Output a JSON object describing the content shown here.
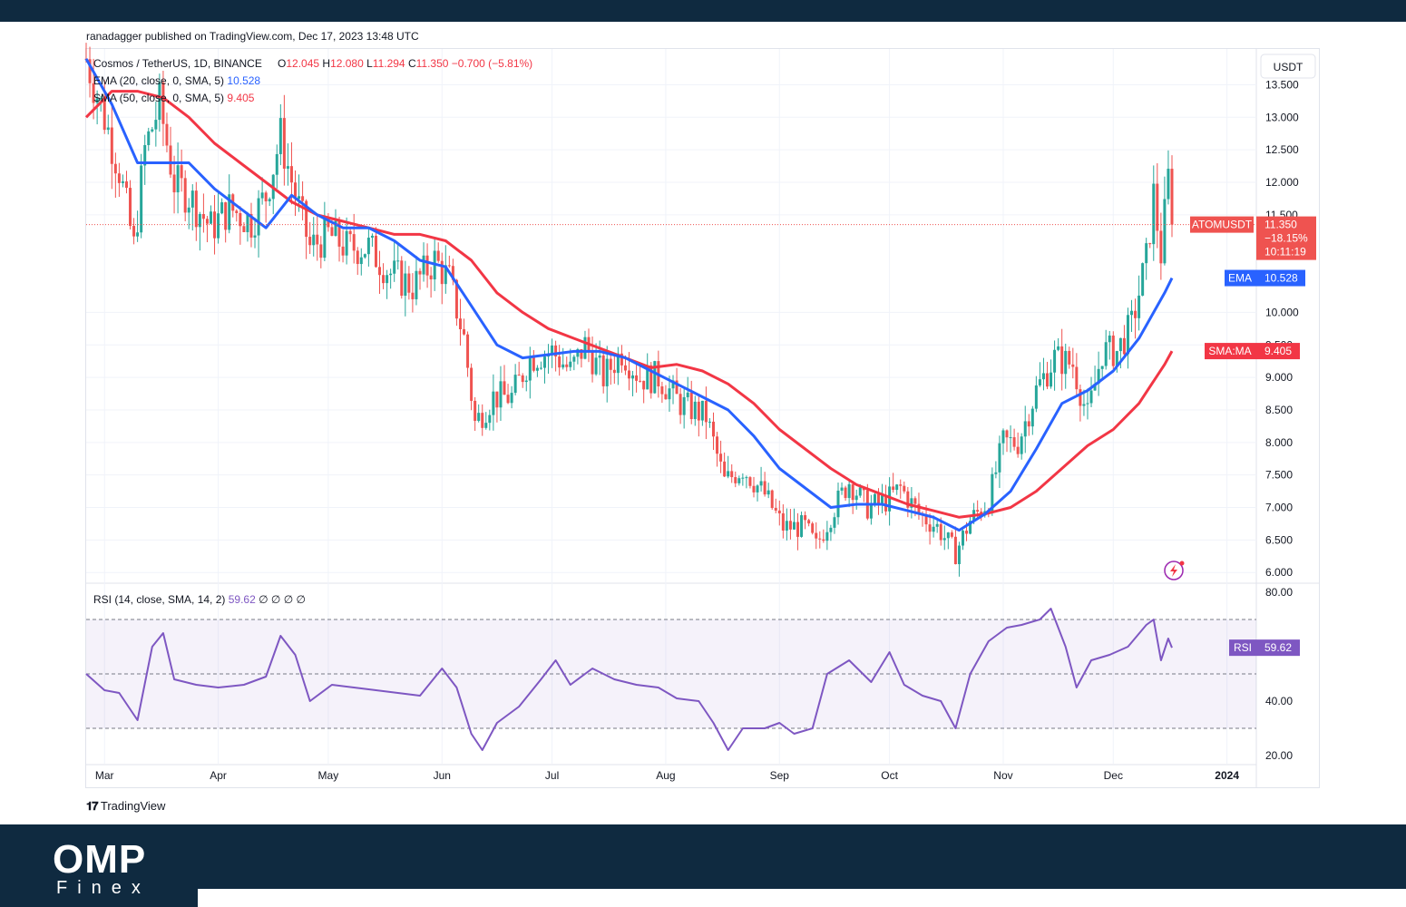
{
  "header": {
    "publisher": "ranadagger published on TradingView.com, Dec 17, 2023 13:48 UTC"
  },
  "footer": {
    "tradingview": "TradingView"
  },
  "brand": {
    "name": "OMP",
    "sub": "Finex"
  },
  "colors": {
    "ema": "#2962ff",
    "sma": "#f23645",
    "up": "#26a69a",
    "down": "#ef5350",
    "rsi": "#7e57c2",
    "banner": "#0f2a40"
  },
  "chart_data": [
    {
      "type": "candlestick",
      "title": "Cosmos / TetherUS, 1D, BINANCE",
      "ohlc_label": {
        "o_label": "O",
        "o": "12.045",
        "h_label": "H",
        "h": "12.080",
        "l_label": "L",
        "l": "11.294",
        "c_label": "C",
        "c": "11.350",
        "change": "−0.700 (−5.81%)"
      },
      "currency": "USDT",
      "ylim": [
        5.85,
        14.05
      ],
      "y_ticks": [
        "13.500",
        "13.000",
        "12.500",
        "12.000",
        "11.500",
        "10.000",
        "9.500",
        "9.000",
        "8.500",
        "8.000",
        "7.500",
        "7.000",
        "6.500",
        "6.000"
      ],
      "x_ticks": [
        "Mar",
        "Apr",
        "May",
        "Jun",
        "Jul",
        "Aug",
        "Sep",
        "Oct",
        "Nov",
        "Dec",
        "2024"
      ],
      "indicators": [
        {
          "label": "EMA (20, close, 0, SMA, 5)",
          "value": "10.528"
        },
        {
          "label": "SMA (50, close, 0, SMA, 5)",
          "value": "9.405"
        }
      ],
      "series": [
        {
          "name": "EMA",
          "value": "10.528",
          "points": [
            [
              "2023-02-24",
              13.9
            ],
            [
              "2023-03-03",
              13.2
            ],
            [
              "2023-03-10",
              12.3
            ],
            [
              "2023-03-17",
              12.3
            ],
            [
              "2023-03-24",
              12.3
            ],
            [
              "2023-03-31",
              11.9
            ],
            [
              "2023-04-07",
              11.6
            ],
            [
              "2023-04-14",
              11.3
            ],
            [
              "2023-04-21",
              11.8
            ],
            [
              "2023-04-28",
              11.5
            ],
            [
              "2023-05-05",
              11.3
            ],
            [
              "2023-05-12",
              11.3
            ],
            [
              "2023-05-19",
              11.1
            ],
            [
              "2023-05-26",
              10.8
            ],
            [
              "2023-06-02",
              10.7
            ],
            [
              "2023-06-09",
              10.1
            ],
            [
              "2023-06-16",
              9.5
            ],
            [
              "2023-06-23",
              9.3
            ],
            [
              "2023-06-30",
              9.35
            ],
            [
              "2023-07-07",
              9.4
            ],
            [
              "2023-07-14",
              9.4
            ],
            [
              "2023-07-21",
              9.3
            ],
            [
              "2023-07-28",
              9.1
            ],
            [
              "2023-08-04",
              8.9
            ],
            [
              "2023-08-11",
              8.7
            ],
            [
              "2023-08-18",
              8.5
            ],
            [
              "2023-08-25",
              8.1
            ],
            [
              "2023-09-01",
              7.6
            ],
            [
              "2023-09-08",
              7.3
            ],
            [
              "2023-09-15",
              7.0
            ],
            [
              "2023-09-22",
              7.05
            ],
            [
              "2023-09-29",
              7.05
            ],
            [
              "2023-10-06",
              6.95
            ],
            [
              "2023-10-13",
              6.85
            ],
            [
              "2023-10-20",
              6.65
            ],
            [
              "2023-10-27",
              6.9
            ],
            [
              "2023-11-03",
              7.25
            ],
            [
              "2023-11-10",
              7.9
            ],
            [
              "2023-11-17",
              8.6
            ],
            [
              "2023-11-24",
              8.8
            ],
            [
              "2023-12-01",
              9.1
            ],
            [
              "2023-12-08",
              9.6
            ],
            [
              "2023-12-15",
              10.3
            ],
            [
              "2023-12-17",
              10.528
            ]
          ]
        },
        {
          "name": "SMA:MA",
          "value": "9.405",
          "points": [
            [
              "2023-02-24",
              13.0
            ],
            [
              "2023-03-03",
              13.4
            ],
            [
              "2023-03-10",
              13.4
            ],
            [
              "2023-03-17",
              13.3
            ],
            [
              "2023-03-24",
              13.0
            ],
            [
              "2023-03-31",
              12.6
            ],
            [
              "2023-04-07",
              12.3
            ],
            [
              "2023-04-14",
              12.0
            ],
            [
              "2023-04-21",
              11.7
            ],
            [
              "2023-04-28",
              11.5
            ],
            [
              "2023-05-05",
              11.4
            ],
            [
              "2023-05-12",
              11.3
            ],
            [
              "2023-05-19",
              11.2
            ],
            [
              "2023-05-26",
              11.2
            ],
            [
              "2023-06-02",
              11.1
            ],
            [
              "2023-06-09",
              10.8
            ],
            [
              "2023-06-16",
              10.3
            ],
            [
              "2023-06-23",
              10.0
            ],
            [
              "2023-06-30",
              9.75
            ],
            [
              "2023-07-07",
              9.6
            ],
            [
              "2023-07-14",
              9.45
            ],
            [
              "2023-07-21",
              9.3
            ],
            [
              "2023-07-28",
              9.15
            ],
            [
              "2023-08-04",
              9.2
            ],
            [
              "2023-08-11",
              9.1
            ],
            [
              "2023-08-18",
              8.9
            ],
            [
              "2023-08-25",
              8.6
            ],
            [
              "2023-09-01",
              8.2
            ],
            [
              "2023-09-08",
              7.9
            ],
            [
              "2023-09-15",
              7.6
            ],
            [
              "2023-09-22",
              7.35
            ],
            [
              "2023-09-29",
              7.2
            ],
            [
              "2023-10-06",
              7.05
            ],
            [
              "2023-10-13",
              6.95
            ],
            [
              "2023-10-20",
              6.85
            ],
            [
              "2023-10-27",
              6.9
            ],
            [
              "2023-11-03",
              7.0
            ],
            [
              "2023-11-10",
              7.25
            ],
            [
              "2023-11-17",
              7.6
            ],
            [
              "2023-11-24",
              7.95
            ],
            [
              "2023-12-01",
              8.2
            ],
            [
              "2023-12-08",
              8.6
            ],
            [
              "2023-12-15",
              9.2
            ],
            [
              "2023-12-17",
              9.405
            ]
          ]
        },
        {
          "name": "Price",
          "points": [
            [
              "2023-02-24",
              13.9
            ],
            [
              "2023-03-01",
              13.0
            ],
            [
              "2023-03-05",
              12.2
            ],
            [
              "2023-03-09",
              11.0
            ],
            [
              "2023-03-12",
              12.5
            ],
            [
              "2023-03-16",
              13.2
            ],
            [
              "2023-03-20",
              12.0
            ],
            [
              "2023-03-24",
              11.8
            ],
            [
              "2023-03-30",
              11.3
            ],
            [
              "2023-04-04",
              11.6
            ],
            [
              "2023-04-10",
              11.4
            ],
            [
              "2023-04-14",
              11.8
            ],
            [
              "2023-04-18",
              12.7
            ],
            [
              "2023-04-22",
              11.8
            ],
            [
              "2023-04-26",
              11.0
            ],
            [
              "2023-05-01",
              11.2
            ],
            [
              "2023-05-06",
              11.0
            ],
            [
              "2023-05-12",
              11.0
            ],
            [
              "2023-05-18",
              10.6
            ],
            [
              "2023-05-24",
              10.4
            ],
            [
              "2023-05-30",
              10.8
            ],
            [
              "2023-06-03",
              10.5
            ],
            [
              "2023-06-07",
              9.6
            ],
            [
              "2023-06-10",
              8.3
            ],
            [
              "2023-06-15",
              8.7
            ],
            [
              "2023-06-20",
              8.7
            ],
            [
              "2023-06-25",
              9.3
            ],
            [
              "2023-07-01",
              9.4
            ],
            [
              "2023-07-06",
              9.1
            ],
            [
              "2023-07-10",
              9.5
            ],
            [
              "2023-07-15",
              9.0
            ],
            [
              "2023-07-20",
              9.4
            ],
            [
              "2023-07-25",
              9.0
            ],
            [
              "2023-07-30",
              9.0
            ],
            [
              "2023-08-05",
              8.6
            ],
            [
              "2023-08-12",
              8.4
            ],
            [
              "2023-08-17",
              7.4
            ],
            [
              "2023-08-22",
              7.6
            ],
            [
              "2023-08-28",
              7.2
            ],
            [
              "2023-09-02",
              6.7
            ],
            [
              "2023-09-08",
              6.7
            ],
            [
              "2023-09-11",
              6.4
            ],
            [
              "2023-09-16",
              7.0
            ],
            [
              "2023-09-20",
              7.4
            ],
            [
              "2023-09-25",
              7.0
            ],
            [
              "2023-09-30",
              7.1
            ],
            [
              "2023-10-04",
              7.3
            ],
            [
              "2023-10-09",
              6.9
            ],
            [
              "2023-10-14",
              6.7
            ],
            [
              "2023-10-19",
              6.3
            ],
            [
              "2023-10-23",
              6.8
            ],
            [
              "2023-10-28",
              7.1
            ],
            [
              "2023-11-01",
              8.0
            ],
            [
              "2023-11-05",
              8.0
            ],
            [
              "2023-11-10",
              8.8
            ],
            [
              "2023-11-15",
              9.3
            ],
            [
              "2023-11-20",
              9.2
            ],
            [
              "2023-11-24",
              8.4
            ],
            [
              "2023-11-28",
              9.4
            ],
            [
              "2023-12-02",
              9.4
            ],
            [
              "2023-12-06",
              9.8
            ],
            [
              "2023-12-10",
              10.8
            ],
            [
              "2023-12-12",
              11.8
            ],
            [
              "2023-12-14",
              10.9
            ],
            [
              "2023-12-16",
              12.045
            ],
            [
              "2023-12-17",
              11.35
            ]
          ]
        }
      ],
      "last_price": {
        "label": "ATOMUSDT",
        "value": "11.350",
        "change": "−18.15%",
        "countdown": "10:11:19"
      }
    },
    {
      "type": "line",
      "title": "RSI (14, close, SMA, 14, 2)",
      "legend_value": "59.62",
      "legend_extras": [
        "∅",
        "∅",
        "∅",
        "∅"
      ],
      "ylim": [
        17,
        83
      ],
      "y_ticks": [
        "80.00",
        "40.00",
        "20.00"
      ],
      "bands": [
        70,
        50,
        30
      ],
      "series": [
        {
          "name": "RSI",
          "value": "59.62",
          "points": [
            [
              "2023-02-24",
              50
            ],
            [
              "2023-03-01",
              44
            ],
            [
              "2023-03-05",
              43
            ],
            [
              "2023-03-10",
              33
            ],
            [
              "2023-03-14",
              60
            ],
            [
              "2023-03-17",
              65
            ],
            [
              "2023-03-20",
              48
            ],
            [
              "2023-03-26",
              46
            ],
            [
              "2023-04-01",
              45
            ],
            [
              "2023-04-08",
              46
            ],
            [
              "2023-04-14",
              49
            ],
            [
              "2023-04-18",
              64
            ],
            [
              "2023-04-22",
              57
            ],
            [
              "2023-04-26",
              40
            ],
            [
              "2023-05-02",
              46
            ],
            [
              "2023-05-08",
              45
            ],
            [
              "2023-05-14",
              44
            ],
            [
              "2023-05-20",
              43
            ],
            [
              "2023-05-26",
              42
            ],
            [
              "2023-06-01",
              52
            ],
            [
              "2023-06-05",
              45
            ],
            [
              "2023-06-09",
              28
            ],
            [
              "2023-06-12",
              22
            ],
            [
              "2023-06-16",
              32
            ],
            [
              "2023-06-22",
              38
            ],
            [
              "2023-06-28",
              48
            ],
            [
              "2023-07-02",
              55
            ],
            [
              "2023-07-06",
              46
            ],
            [
              "2023-07-12",
              52
            ],
            [
              "2023-07-18",
              48
            ],
            [
              "2023-07-24",
              46
            ],
            [
              "2023-07-30",
              45
            ],
            [
              "2023-08-04",
              41
            ],
            [
              "2023-08-10",
              40
            ],
            [
              "2023-08-14",
              32
            ],
            [
              "2023-08-18",
              22
            ],
            [
              "2023-08-22",
              30
            ],
            [
              "2023-08-28",
              30
            ],
            [
              "2023-09-01",
              32
            ],
            [
              "2023-09-05",
              28
            ],
            [
              "2023-09-10",
              30
            ],
            [
              "2023-09-14",
              50
            ],
            [
              "2023-09-20",
              55
            ],
            [
              "2023-09-26",
              47
            ],
            [
              "2023-10-01",
              58
            ],
            [
              "2023-10-05",
              46
            ],
            [
              "2023-10-10",
              42
            ],
            [
              "2023-10-15",
              40
            ],
            [
              "2023-10-19",
              30
            ],
            [
              "2023-10-23",
              50
            ],
            [
              "2023-10-28",
              62
            ],
            [
              "2023-11-02",
              67
            ],
            [
              "2023-11-06",
              68
            ],
            [
              "2023-11-11",
              70
            ],
            [
              "2023-11-14",
              74
            ],
            [
              "2023-11-18",
              60
            ],
            [
              "2023-11-21",
              45
            ],
            [
              "2023-11-25",
              55
            ],
            [
              "2023-11-30",
              57
            ],
            [
              "2023-12-05",
              60
            ],
            [
              "2023-12-10",
              68
            ],
            [
              "2023-12-12",
              70
            ],
            [
              "2023-12-14",
              55
            ],
            [
              "2023-12-16",
              63
            ],
            [
              "2023-12-17",
              59.62
            ]
          ]
        }
      ]
    }
  ]
}
